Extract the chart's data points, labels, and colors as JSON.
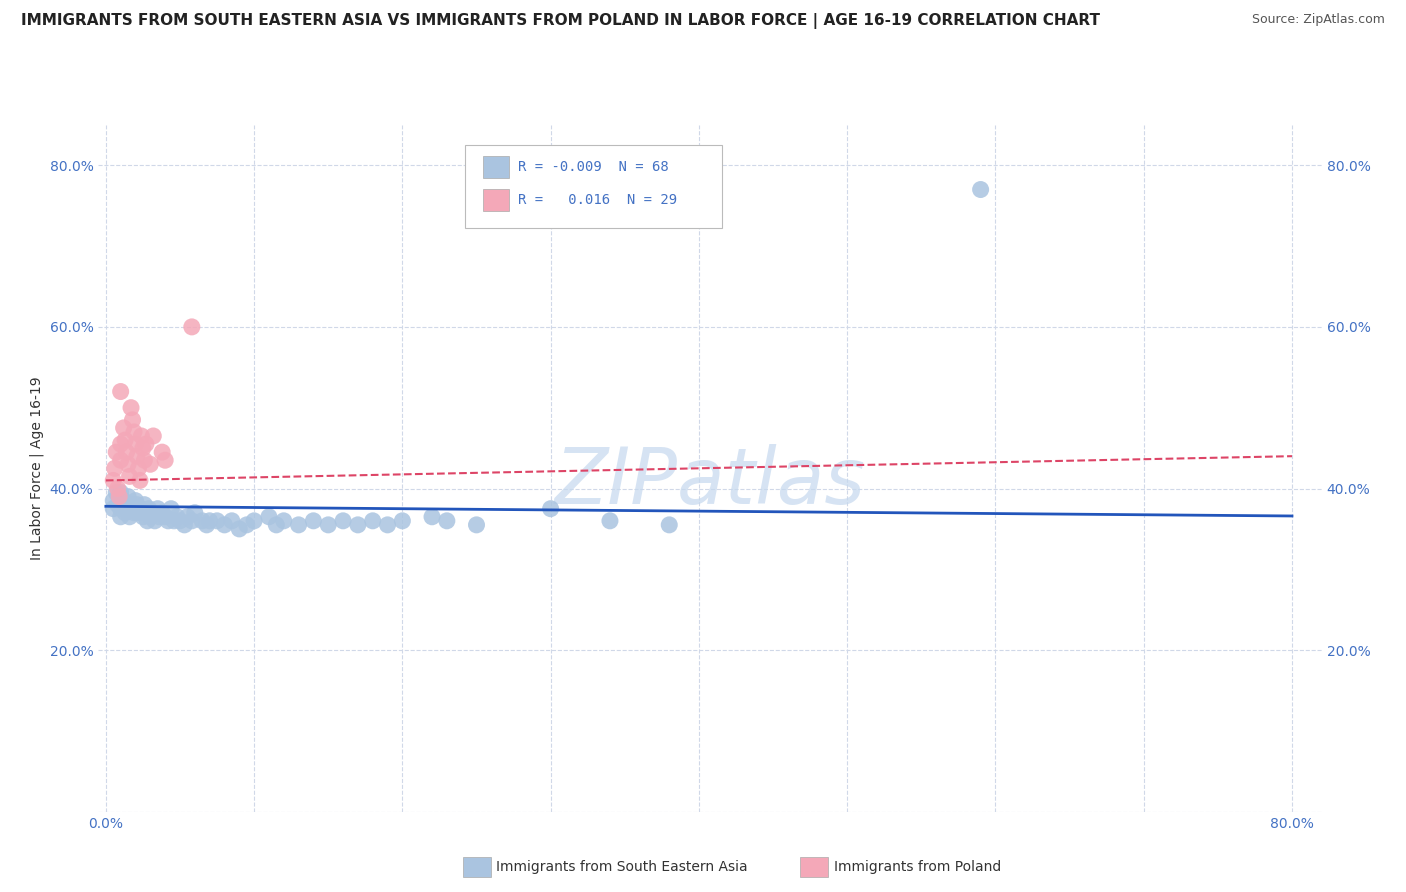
{
  "title": "IMMIGRANTS FROM SOUTH EASTERN ASIA VS IMMIGRANTS FROM POLAND IN LABOR FORCE | AGE 16-19 CORRELATION CHART",
  "source": "Source: ZipAtlas.com",
  "ylabel": "In Labor Force | Age 16-19",
  "xlim": [
    -0.005,
    0.82
  ],
  "ylim": [
    0.0,
    0.85
  ],
  "xtick_left_label": "0.0%",
  "xtick_right_label": "80.0%",
  "ytick_left_labels": [
    "",
    "20.0%",
    "40.0%",
    "60.0%",
    "80.0%"
  ],
  "ytick_left_pos": [
    0.0,
    0.2,
    0.4,
    0.6,
    0.8
  ],
  "ytick_right_labels": [
    "20.0%",
    "40.0%",
    "60.0%",
    "80.0%"
  ],
  "ytick_right_pos": [
    0.2,
    0.4,
    0.6,
    0.8
  ],
  "legend_r1": "-0.009",
  "legend_n1": "68",
  "legend_r2": "0.016",
  "legend_n2": "29",
  "legend_label1": "Immigrants from South Eastern Asia",
  "legend_label2": "Immigrants from Poland",
  "blue_color": "#aac4e0",
  "pink_color": "#f4a8b8",
  "blue_line_color": "#2255bb",
  "pink_line_color": "#dd4466",
  "watermark": "ZIPatlas",
  "watermark_color": "#c5d8ee",
  "blue_scatter": [
    [
      0.005,
      0.385
    ],
    [
      0.005,
      0.375
    ],
    [
      0.007,
      0.395
    ],
    [
      0.008,
      0.38
    ],
    [
      0.01,
      0.395
    ],
    [
      0.01,
      0.375
    ],
    [
      0.01,
      0.365
    ],
    [
      0.012,
      0.385
    ],
    [
      0.013,
      0.38
    ],
    [
      0.013,
      0.37
    ],
    [
      0.015,
      0.39
    ],
    [
      0.015,
      0.375
    ],
    [
      0.016,
      0.365
    ],
    [
      0.017,
      0.38
    ],
    [
      0.018,
      0.375
    ],
    [
      0.019,
      0.37
    ],
    [
      0.02,
      0.385
    ],
    [
      0.021,
      0.38
    ],
    [
      0.022,
      0.37
    ],
    [
      0.023,
      0.375
    ],
    [
      0.025,
      0.365
    ],
    [
      0.026,
      0.38
    ],
    [
      0.027,
      0.37
    ],
    [
      0.028,
      0.36
    ],
    [
      0.029,
      0.375
    ],
    [
      0.03,
      0.365
    ],
    [
      0.031,
      0.37
    ],
    [
      0.033,
      0.36
    ],
    [
      0.035,
      0.375
    ],
    [
      0.036,
      0.365
    ],
    [
      0.038,
      0.37
    ],
    [
      0.04,
      0.365
    ],
    [
      0.042,
      0.36
    ],
    [
      0.044,
      0.375
    ],
    [
      0.046,
      0.36
    ],
    [
      0.048,
      0.365
    ],
    [
      0.05,
      0.36
    ],
    [
      0.053,
      0.355
    ],
    [
      0.055,
      0.365
    ],
    [
      0.058,
      0.36
    ],
    [
      0.06,
      0.37
    ],
    [
      0.065,
      0.36
    ],
    [
      0.068,
      0.355
    ],
    [
      0.07,
      0.36
    ],
    [
      0.075,
      0.36
    ],
    [
      0.08,
      0.355
    ],
    [
      0.085,
      0.36
    ],
    [
      0.09,
      0.35
    ],
    [
      0.095,
      0.355
    ],
    [
      0.1,
      0.36
    ],
    [
      0.11,
      0.365
    ],
    [
      0.115,
      0.355
    ],
    [
      0.12,
      0.36
    ],
    [
      0.13,
      0.355
    ],
    [
      0.14,
      0.36
    ],
    [
      0.15,
      0.355
    ],
    [
      0.16,
      0.36
    ],
    [
      0.17,
      0.355
    ],
    [
      0.18,
      0.36
    ],
    [
      0.19,
      0.355
    ],
    [
      0.2,
      0.36
    ],
    [
      0.22,
      0.365
    ],
    [
      0.23,
      0.36
    ],
    [
      0.25,
      0.355
    ],
    [
      0.3,
      0.375
    ],
    [
      0.34,
      0.36
    ],
    [
      0.38,
      0.355
    ],
    [
      0.59,
      0.77
    ]
  ],
  "pink_scatter": [
    [
      0.005,
      0.41
    ],
    [
      0.006,
      0.425
    ],
    [
      0.007,
      0.445
    ],
    [
      0.008,
      0.4
    ],
    [
      0.009,
      0.39
    ],
    [
      0.01,
      0.455
    ],
    [
      0.01,
      0.435
    ],
    [
      0.012,
      0.475
    ],
    [
      0.013,
      0.46
    ],
    [
      0.014,
      0.445
    ],
    [
      0.015,
      0.43
    ],
    [
      0.016,
      0.415
    ],
    [
      0.017,
      0.5
    ],
    [
      0.018,
      0.485
    ],
    [
      0.019,
      0.47
    ],
    [
      0.02,
      0.455
    ],
    [
      0.021,
      0.44
    ],
    [
      0.022,
      0.425
    ],
    [
      0.023,
      0.41
    ],
    [
      0.024,
      0.465
    ],
    [
      0.025,
      0.45
    ],
    [
      0.026,
      0.435
    ],
    [
      0.027,
      0.455
    ],
    [
      0.03,
      0.43
    ],
    [
      0.032,
      0.465
    ],
    [
      0.038,
      0.445
    ],
    [
      0.04,
      0.435
    ],
    [
      0.058,
      0.6
    ],
    [
      0.01,
      0.52
    ]
  ],
  "blue_trend_x": [
    0.0,
    0.8
  ],
  "blue_trend_y": [
    0.378,
    0.366
  ],
  "pink_trend_x": [
    0.0,
    0.8
  ],
  "pink_trend_y": [
    0.41,
    0.44
  ],
  "grid_color": "#d0d8e8",
  "tick_color": "#4472c4",
  "background_color": "#ffffff",
  "title_fontsize": 11,
  "axis_label_fontsize": 10,
  "tick_fontsize": 10
}
